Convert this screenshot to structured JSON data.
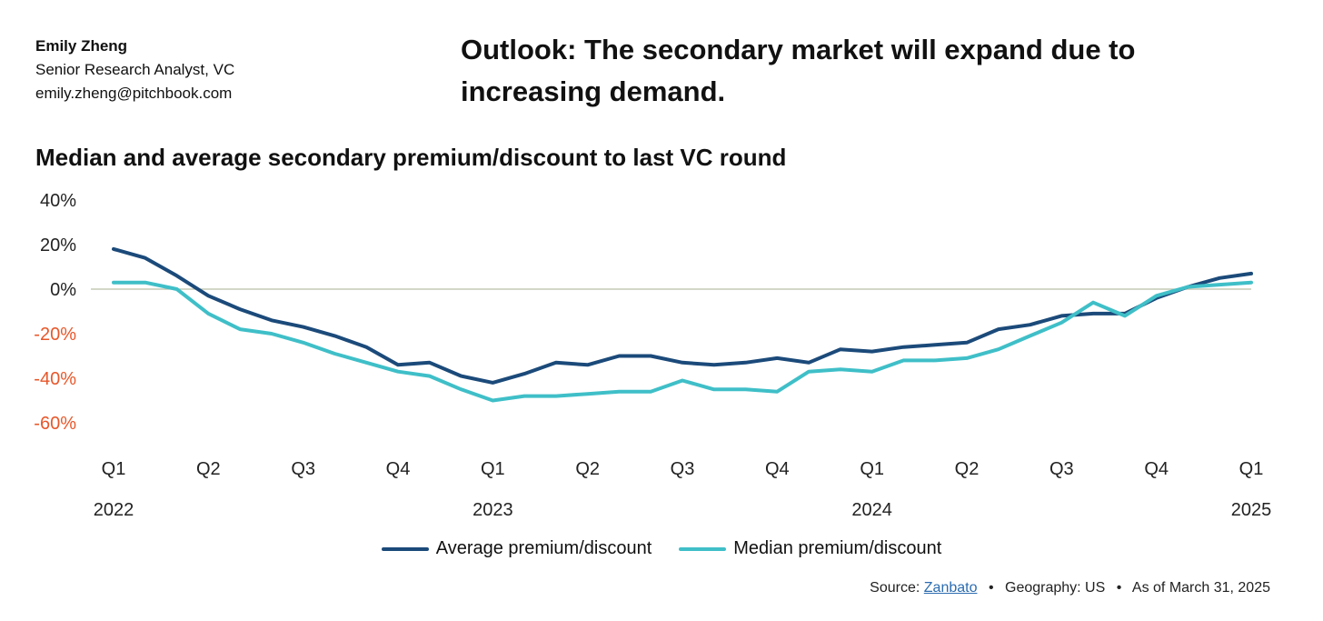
{
  "author": {
    "name": "Emily Zheng",
    "role": "Senior Research Analyst, VC",
    "email": "emily.zheng@pitchbook.com"
  },
  "headline": "Outlook: The secondary market will expand due to increasing demand.",
  "chart_data": {
    "type": "line",
    "title": "Median and average secondary premium/discount to last VC round",
    "ylim": [
      -60,
      40
    ],
    "y_ticks": [
      40,
      20,
      0,
      -20,
      -40,
      -60
    ],
    "y_tick_labels": [
      "40%",
      "20%",
      "0%",
      "-20%",
      "-40%",
      "-60%"
    ],
    "x_quarter_labels": [
      "Q1",
      "Q2",
      "Q3",
      "Q4",
      "Q1",
      "Q2",
      "Q3",
      "Q4",
      "Q1",
      "Q2",
      "Q3",
      "Q4",
      "Q1"
    ],
    "x_year_labels": [
      "2022",
      "2023",
      "2024",
      "2025"
    ],
    "negative_color": "#e8572a",
    "series": [
      {
        "name": "Average premium/discount",
        "color": "#1b4a7a",
        "values": [
          18,
          14,
          6,
          -3,
          -9,
          -14,
          -17,
          -21,
          -26,
          -34,
          -33,
          -39,
          -42,
          -38,
          -33,
          -34,
          -30,
          -30,
          -33,
          -34,
          -33,
          -31,
          -33,
          -27,
          -28,
          -26,
          -25,
          -24,
          -18,
          -16,
          -12,
          -11,
          -11,
          -4,
          1,
          5,
          7
        ]
      },
      {
        "name": "Median premium/discount",
        "color": "#3fbfc8",
        "values": [
          3,
          3,
          0,
          -11,
          -18,
          -20,
          -24,
          -29,
          -33,
          -37,
          -39,
          -45,
          -50,
          -48,
          -48,
          -47,
          -46,
          -46,
          -41,
          -45,
          -45,
          -46,
          -37,
          -36,
          -37,
          -32,
          -32,
          -31,
          -27,
          -21,
          -15,
          -6,
          -12,
          -3,
          1,
          2,
          3
        ]
      }
    ]
  },
  "source": {
    "prefix": "Source:",
    "link": "Zanbato",
    "geography": "Geography: US",
    "as_of": "As of March 31, 2025",
    "bullet": "•"
  }
}
